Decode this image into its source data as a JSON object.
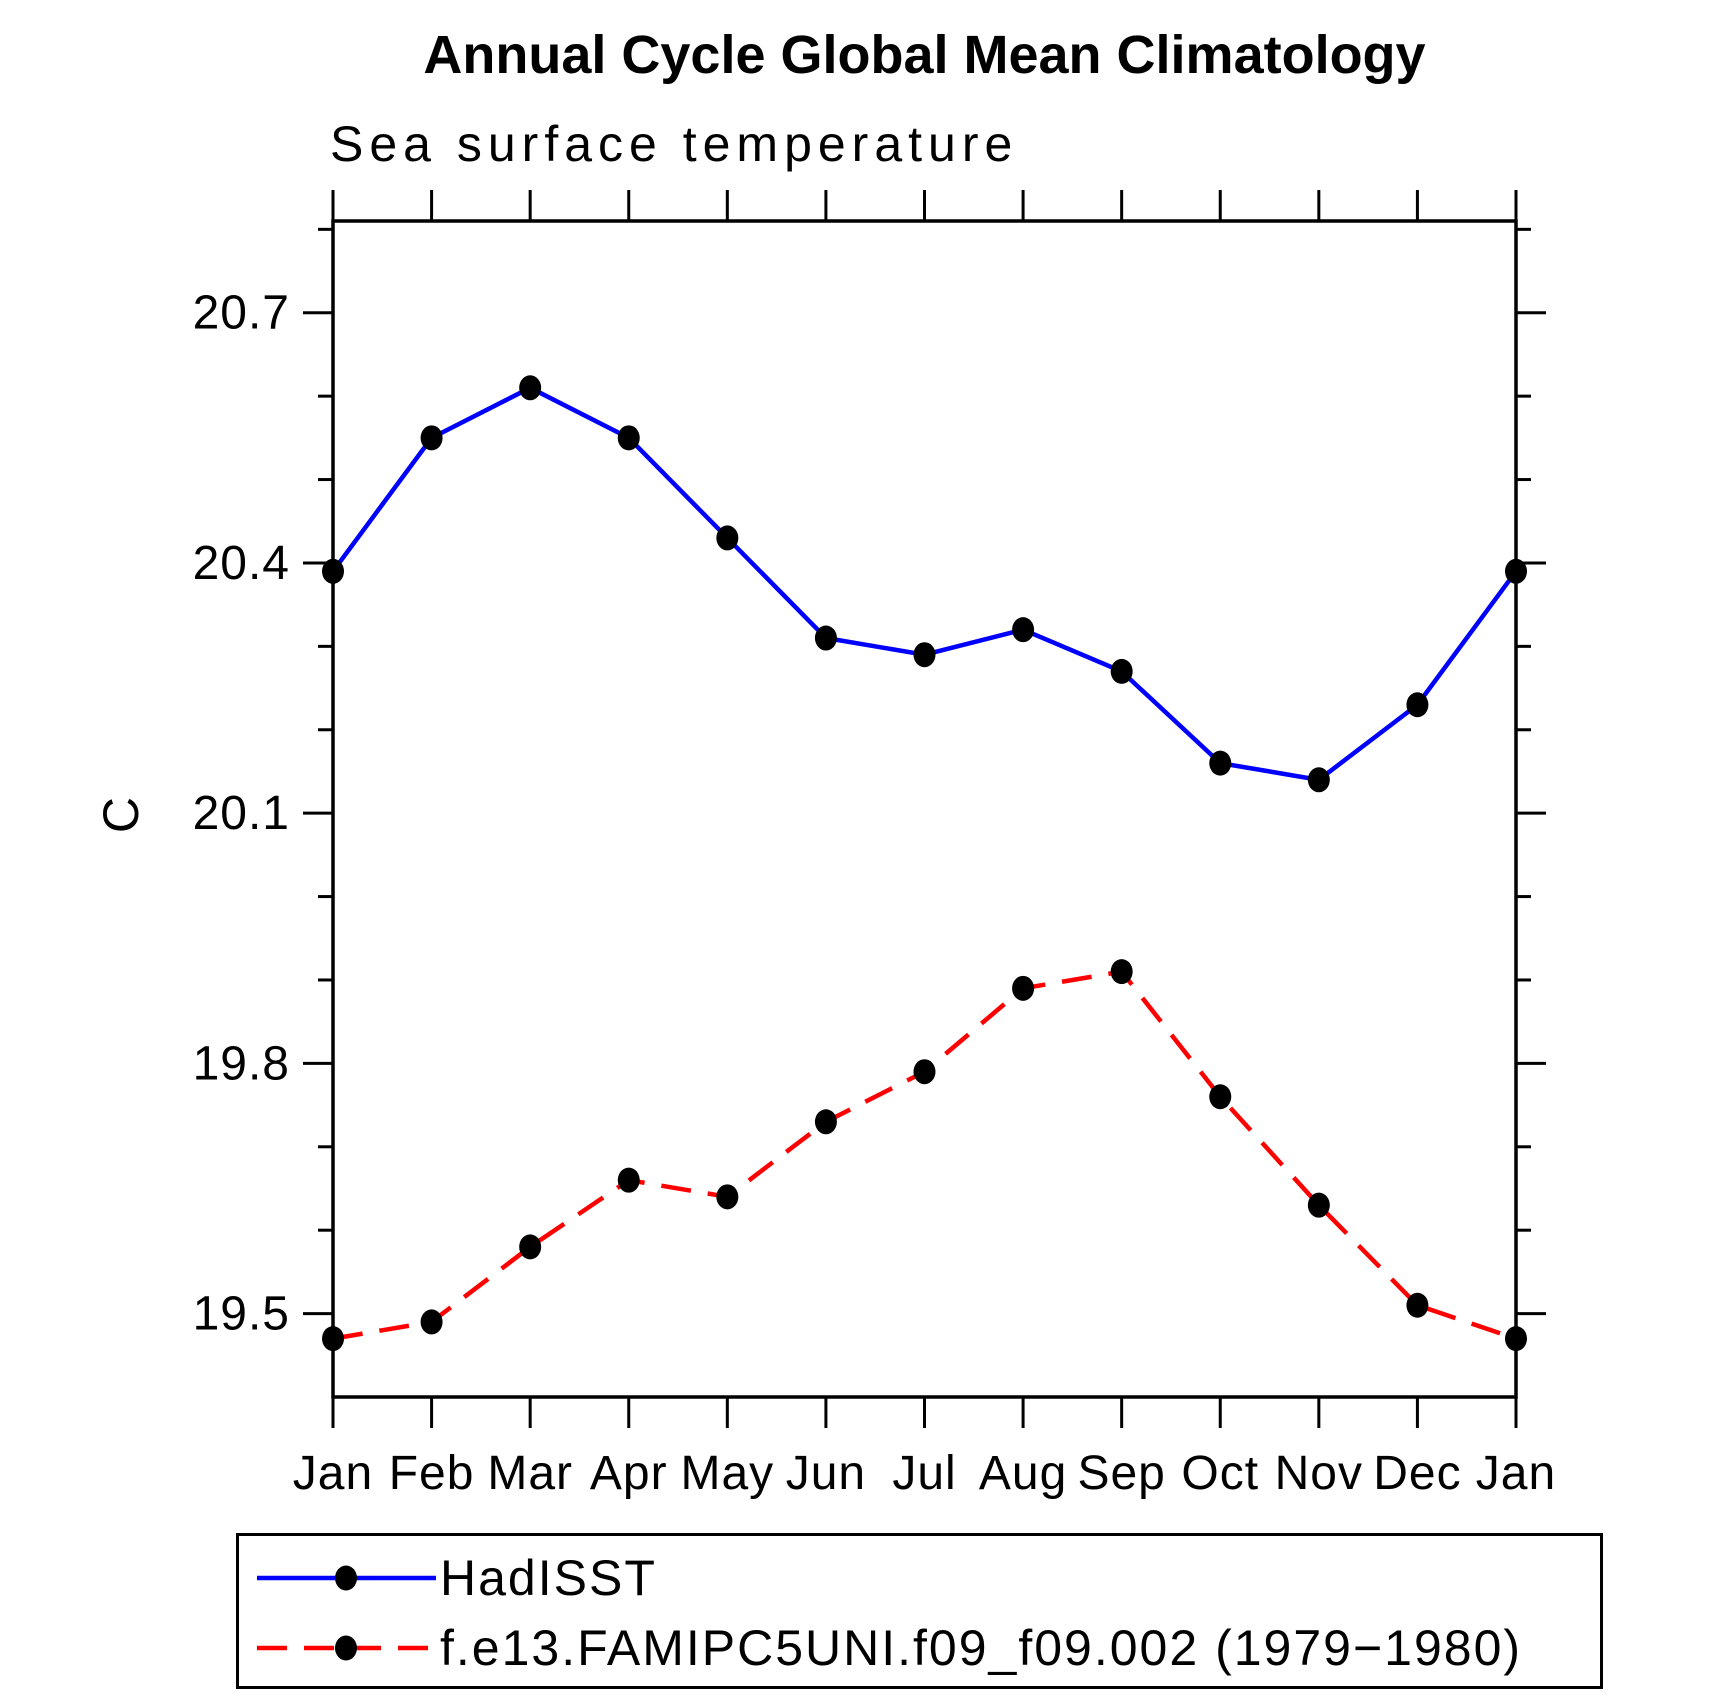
{
  "chart_data": {
    "type": "line",
    "title": "Annual Cycle Global Mean Climatology",
    "subtitle": "Sea surface temperature",
    "ylabel": "C",
    "xlabel": "",
    "categories": [
      "Jan",
      "Feb",
      "Mar",
      "Apr",
      "May",
      "Jun",
      "Jul",
      "Aug",
      "Sep",
      "Oct",
      "Nov",
      "Dec",
      "Jan"
    ],
    "series": [
      {
        "name": "HadISST",
        "color": "#0000ff",
        "line_style": "solid",
        "marker": "filled-circle",
        "marker_color": "#000000",
        "values": [
          20.39,
          20.55,
          20.61,
          20.55,
          20.43,
          20.31,
          20.29,
          20.32,
          20.27,
          20.16,
          20.14,
          20.23,
          20.39
        ]
      },
      {
        "name": "f.e13.FAMIPC5UNI.f09_f09.002 (1979−1980)",
        "color": "#ff0000",
        "line_style": "dashed",
        "marker": "filled-circle",
        "marker_color": "#000000",
        "values": [
          19.47,
          19.49,
          19.58,
          19.66,
          19.64,
          19.73,
          19.79,
          19.89,
          19.91,
          19.76,
          19.63,
          19.51,
          19.47
        ]
      }
    ],
    "ylim": [
      19.4,
      20.81
    ],
    "ytick_major": [
      19.5,
      19.8,
      20.1,
      20.4,
      20.7
    ],
    "ytick_labels": [
      "19.5",
      "19.8",
      "20.1",
      "20.4",
      "20.7"
    ],
    "ytick_minor_step": 0.1,
    "grid": false,
    "legend_position": "bottom",
    "axis_color": "#000000",
    "background_color": "#ffffff"
  }
}
